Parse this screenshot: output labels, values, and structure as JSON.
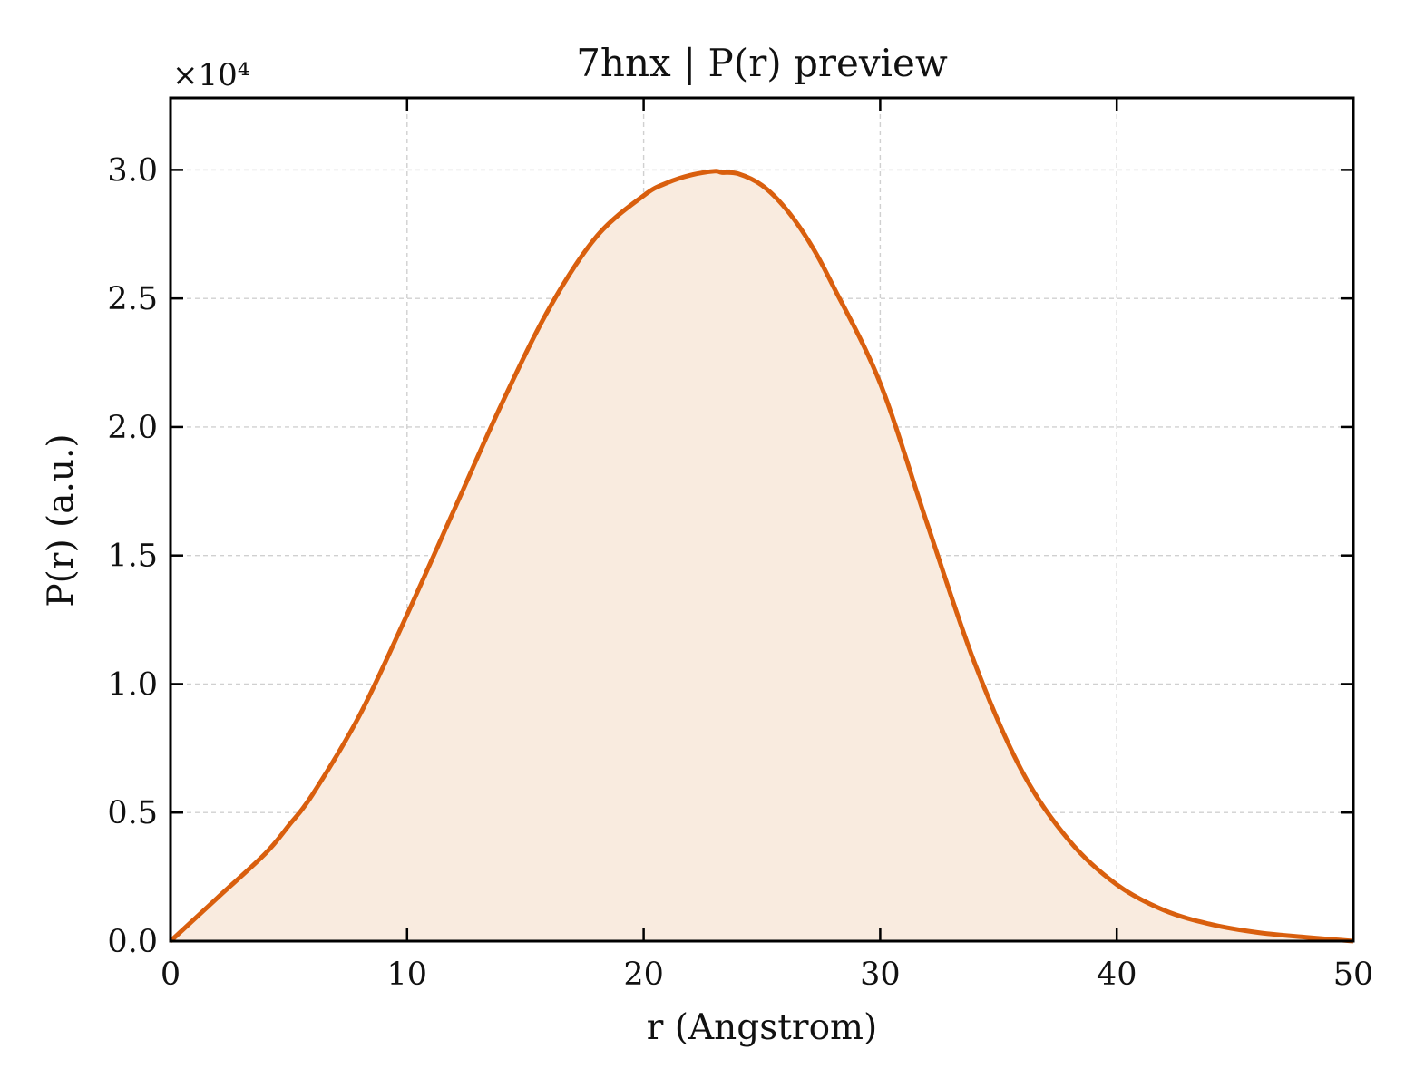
{
  "chart_data": {
    "type": "area",
    "title": "7hnx | P(r) preview",
    "xlabel": "r (Angstrom)",
    "ylabel": "P(r) (a.u.)",
    "y_multiplier_label": "×10⁴",
    "xlim": [
      0,
      50
    ],
    "ylim": [
      0,
      3.28
    ],
    "y_scale_factor": 10000,
    "x_ticks": [
      0,
      10,
      20,
      30,
      40,
      50
    ],
    "x_tick_labels": [
      "0",
      "10",
      "20",
      "30",
      "40",
      "50"
    ],
    "y_ticks": [
      0,
      0.5,
      1.0,
      1.5,
      2.0,
      2.5,
      3.0
    ],
    "y_tick_labels": [
      "0.0",
      "0.5",
      "1.0",
      "1.5",
      "2.0",
      "2.5",
      "3.0"
    ],
    "grid": true,
    "legend": "none",
    "series": [
      {
        "x": [
          0,
          2,
          4,
          5,
          6,
          8,
          10,
          12,
          14,
          16,
          18,
          20,
          21,
          22,
          23,
          23.3,
          24,
          25,
          26,
          27,
          28,
          30,
          32,
          34,
          36,
          38,
          40,
          42,
          44,
          46,
          48,
          50
        ],
        "y": [
          0,
          0.17,
          0.34,
          0.45,
          0.57,
          0.88,
          1.27,
          1.68,
          2.09,
          2.46,
          2.74,
          2.9,
          2.95,
          2.98,
          2.995,
          2.99,
          2.985,
          2.94,
          2.85,
          2.72,
          2.55,
          2.17,
          1.62,
          1.08,
          0.66,
          0.39,
          0.22,
          0.12,
          0.065,
          0.033,
          0.015,
          0.0
        ]
      }
    ],
    "colors": {
      "line": "#d95f0e",
      "fill": "#f9ebdf",
      "grid": "#d0d0d0"
    }
  }
}
